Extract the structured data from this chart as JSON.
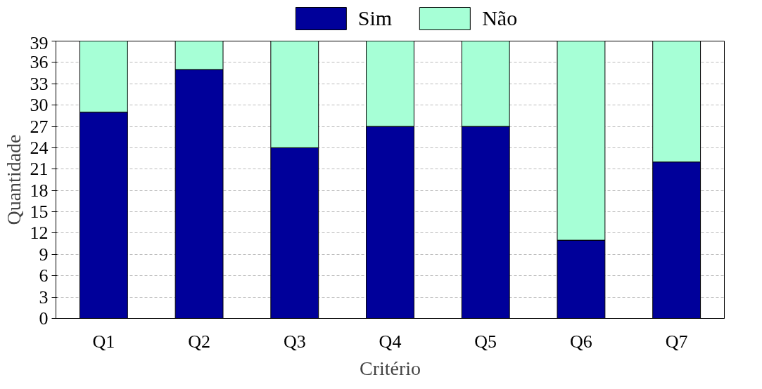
{
  "chart_data": {
    "type": "bar",
    "xlabel": "Critério",
    "ylabel": "Quantidade",
    "categories": [
      "Q1",
      "Q2",
      "Q3",
      "Q4",
      "Q5",
      "Q6",
      "Q7"
    ],
    "series": [
      {
        "name": "Sim",
        "color": "#00009a",
        "values": [
          29,
          35,
          24,
          27,
          27,
          11,
          22
        ]
      },
      {
        "name": "Não",
        "color": "#a6ffd6",
        "values": [
          10,
          4,
          15,
          12,
          12,
          28,
          17
        ]
      }
    ],
    "stacked": true,
    "ylim": [
      0,
      39
    ],
    "yticks": [
      0,
      3,
      6,
      9,
      12,
      15,
      18,
      21,
      24,
      27,
      30,
      33,
      36,
      39
    ],
    "grid": "y",
    "legend": "top"
  }
}
